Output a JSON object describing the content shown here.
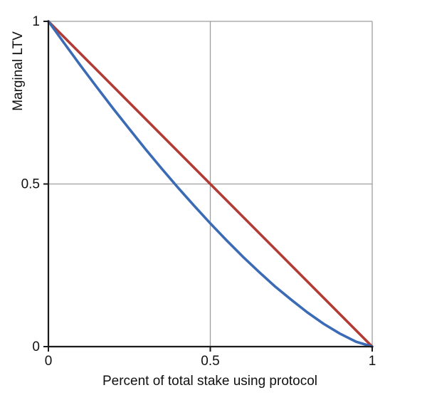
{
  "chart_data": {
    "type": "line",
    "title": "",
    "xlabel": "Percent of total stake using protocol",
    "ylabel": "Marginal LTV",
    "xlim": [
      0,
      1
    ],
    "ylim": [
      0,
      1
    ],
    "grid": true,
    "legend": "none",
    "x_ticks": [
      {
        "value": 0,
        "label": "0"
      },
      {
        "value": 0.5,
        "label": "0.5"
      },
      {
        "value": 1,
        "label": "1"
      }
    ],
    "y_ticks": [
      {
        "value": 0,
        "label": "0"
      },
      {
        "value": 0.5,
        "label": "0.5"
      },
      {
        "value": 1,
        "label": "1"
      }
    ],
    "series": [
      {
        "name": "red-line-linear",
        "color": "#b23b35",
        "x": [
          0,
          1
        ],
        "y": [
          1,
          0
        ]
      },
      {
        "name": "blue-curve-marginal-ltv",
        "color": "#3b6bb5",
        "x": [
          0,
          0.05,
          0.1,
          0.15,
          0.2,
          0.25,
          0.3,
          0.35,
          0.4,
          0.45,
          0.5,
          0.55,
          0.6,
          0.65,
          0.7,
          0.75,
          0.8,
          0.85,
          0.9,
          0.95,
          1
        ],
        "y": [
          1.0,
          0.931,
          0.863,
          0.797,
          0.732,
          0.669,
          0.607,
          0.547,
          0.489,
          0.433,
          0.379,
          0.327,
          0.277,
          0.23,
          0.185,
          0.144,
          0.105,
          0.07,
          0.04,
          0.015,
          0.0
        ]
      }
    ]
  },
  "colors": {
    "axis": "#1a1a1a",
    "grid": "#9e9e9e",
    "background": "#ffffff",
    "red_series": "#b23b35",
    "blue_series": "#3b6bb5"
  }
}
